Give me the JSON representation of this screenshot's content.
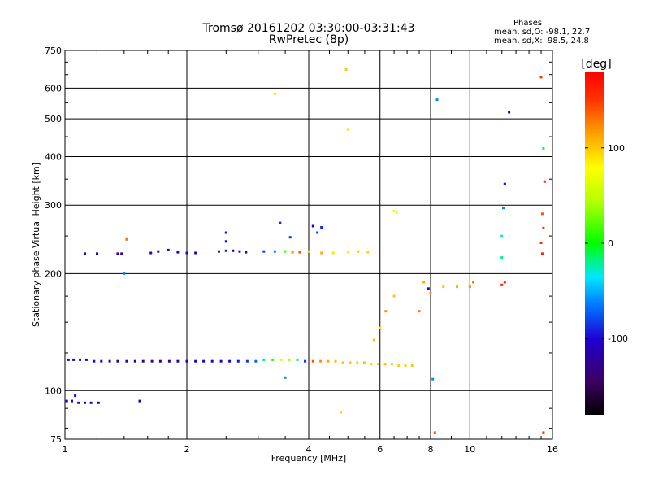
{
  "chart_data": {
    "type": "scatter",
    "title": "Tromsø 20161202 03:30:00-03:31:43",
    "subtitle": "RwPretec (8p)",
    "xlabel": "Frequency [MHz]",
    "ylabel": "Stationary phase Virtual Height [km]",
    "x_scale": "log",
    "y_scale": "log",
    "xlim": [
      1,
      16
    ],
    "ylim": [
      75,
      750
    ],
    "x_ticks": [
      1,
      2,
      4,
      6,
      8,
      10,
      16
    ],
    "y_ticks": [
      75,
      100,
      200,
      300,
      400,
      500,
      600,
      750
    ],
    "grid": true,
    "colorbar": {
      "label": "[deg]",
      "min": -180,
      "max": 180,
      "ticks": [
        100,
        0,
        -100
      ],
      "colormap": "rainbow"
    },
    "phase_stats": {
      "heading": "Phases",
      "o_line": "mean, sd,O: -98.1, 22.7",
      "x_line": "mean, sd,X:  98.5, 24.8"
    },
    "series": [
      {
        "points": [
          [
            1.02,
            120,
            -100
          ],
          [
            1.05,
            120,
            -102
          ],
          [
            1.09,
            120,
            -105
          ],
          [
            1.13,
            120,
            -110
          ],
          [
            1.18,
            119,
            -112
          ],
          [
            1.23,
            119,
            -115
          ],
          [
            1.29,
            119,
            -118
          ],
          [
            1.35,
            119,
            -120
          ],
          [
            1.42,
            119,
            -122
          ],
          [
            1.49,
            119,
            -125
          ],
          [
            1.56,
            119,
            -128
          ],
          [
            1.64,
            119,
            -130
          ],
          [
            1.72,
            119,
            -128
          ],
          [
            1.81,
            119,
            -125
          ],
          [
            1.9,
            119,
            -120
          ],
          [
            2.0,
            119,
            -115
          ],
          [
            2.1,
            119,
            -112
          ],
          [
            2.2,
            119,
            -110
          ],
          [
            2.31,
            119,
            -108
          ],
          [
            2.43,
            119,
            -105
          ],
          [
            2.55,
            119,
            -100
          ],
          [
            2.68,
            119,
            -95
          ],
          [
            2.82,
            119,
            -85
          ],
          [
            2.96,
            119,
            -70
          ],
          [
            3.1,
            120,
            -40
          ],
          [
            3.26,
            120,
            10
          ],
          [
            3.42,
            120,
            60
          ],
          [
            3.58,
            120,
            40
          ],
          [
            3.75,
            120,
            -20
          ],
          [
            3.92,
            119,
            -90
          ],
          [
            4.1,
            119,
            140
          ],
          [
            4.28,
            119,
            120
          ],
          [
            4.47,
            119,
            110
          ],
          [
            4.66,
            119,
            105
          ],
          [
            4.86,
            118,
            100
          ],
          [
            5.06,
            118,
            100
          ],
          [
            5.27,
            118,
            95
          ],
          [
            5.49,
            118,
            100
          ],
          [
            5.71,
            117,
            95
          ],
          [
            5.94,
            117,
            100
          ],
          [
            6.18,
            117,
            105
          ],
          [
            6.42,
            117,
            100
          ],
          [
            6.67,
            116,
            95
          ],
          [
            6.93,
            116,
            95
          ],
          [
            7.2,
            116,
            100
          ],
          [
            1.01,
            94,
            -105
          ],
          [
            1.04,
            94,
            -100
          ],
          [
            1.08,
            93,
            -100
          ],
          [
            1.12,
            93,
            -105
          ],
          [
            1.16,
            93,
            -110
          ],
          [
            1.21,
            93,
            -115
          ],
          [
            1.06,
            97,
            -100
          ],
          [
            1.53,
            94,
            -120
          ],
          [
            1.12,
            225,
            -110
          ],
          [
            1.2,
            225,
            -115
          ],
          [
            1.35,
            225,
            -120
          ],
          [
            1.38,
            225,
            -118
          ],
          [
            1.63,
            226,
            -100
          ],
          [
            1.7,
            228,
            -105
          ],
          [
            1.8,
            230,
            -110
          ],
          [
            1.9,
            227,
            -105
          ],
          [
            2.0,
            226,
            -100
          ],
          [
            2.1,
            226,
            -110
          ],
          [
            2.4,
            228,
            -95
          ],
          [
            2.5,
            229,
            -90
          ],
          [
            2.6,
            229,
            -100
          ],
          [
            2.7,
            228,
            -105
          ],
          [
            2.8,
            227,
            -110
          ],
          [
            3.1,
            228,
            -80
          ],
          [
            3.3,
            228,
            -60
          ],
          [
            3.5,
            228,
            20
          ],
          [
            3.65,
            227,
            120
          ],
          [
            3.8,
            227,
            140
          ],
          [
            4.0,
            228,
            90
          ],
          [
            4.3,
            226,
            110
          ],
          [
            4.6,
            226,
            90
          ],
          [
            5.0,
            227,
            85
          ],
          [
            5.3,
            228,
            100
          ],
          [
            5.6,
            227,
            95
          ],
          [
            3.4,
            270,
            -90
          ],
          [
            4.1,
            265,
            -100
          ],
          [
            4.3,
            263,
            -90
          ],
          [
            4.2,
            255,
            -80
          ],
          [
            3.6,
            248,
            -85
          ],
          [
            2.5,
            255,
            -95
          ],
          [
            2.5,
            242,
            -100
          ],
          [
            6.5,
            290,
            70
          ],
          [
            4.95,
            670,
            100
          ],
          [
            5.0,
            470,
            90
          ],
          [
            6.6,
            287,
            80
          ],
          [
            3.3,
            580,
            90
          ],
          [
            7.5,
            160,
            130
          ],
          [
            7.7,
            190,
            110
          ],
          [
            7.9,
            183,
            -100
          ],
          [
            8.0,
            178,
            120
          ],
          [
            8.6,
            185,
            100
          ],
          [
            9.3,
            185,
            110
          ],
          [
            10.0,
            185,
            120
          ],
          [
            10.2,
            190,
            130
          ],
          [
            12.0,
            187,
            160
          ],
          [
            12.2,
            190,
            150
          ],
          [
            6.5,
            175,
            100
          ],
          [
            6.2,
            160,
            120
          ],
          [
            6.0,
            145,
            90
          ],
          [
            5.8,
            135,
            100
          ],
          [
            8.3,
            560,
            -60
          ],
          [
            12.5,
            520,
            -120
          ],
          [
            12.2,
            340,
            -100
          ],
          [
            12.1,
            295,
            -60
          ],
          [
            12.0,
            250,
            -30
          ],
          [
            12.0,
            220,
            -20
          ],
          [
            15.0,
            640,
            150
          ],
          [
            15.2,
            420,
            -10
          ],
          [
            15.3,
            345,
            160
          ],
          [
            15.1,
            285,
            140
          ],
          [
            15.2,
            262,
            150
          ],
          [
            15.0,
            240,
            150
          ],
          [
            15.1,
            225,
            160
          ],
          [
            15.2,
            78,
            150
          ],
          [
            8.2,
            78,
            140
          ],
          [
            8.1,
            107,
            -60
          ],
          [
            3.5,
            108,
            -60
          ],
          [
            4.8,
            88,
            100
          ],
          [
            1.42,
            245,
            130
          ],
          [
            1.4,
            200,
            -60
          ]
        ]
      }
    ]
  }
}
